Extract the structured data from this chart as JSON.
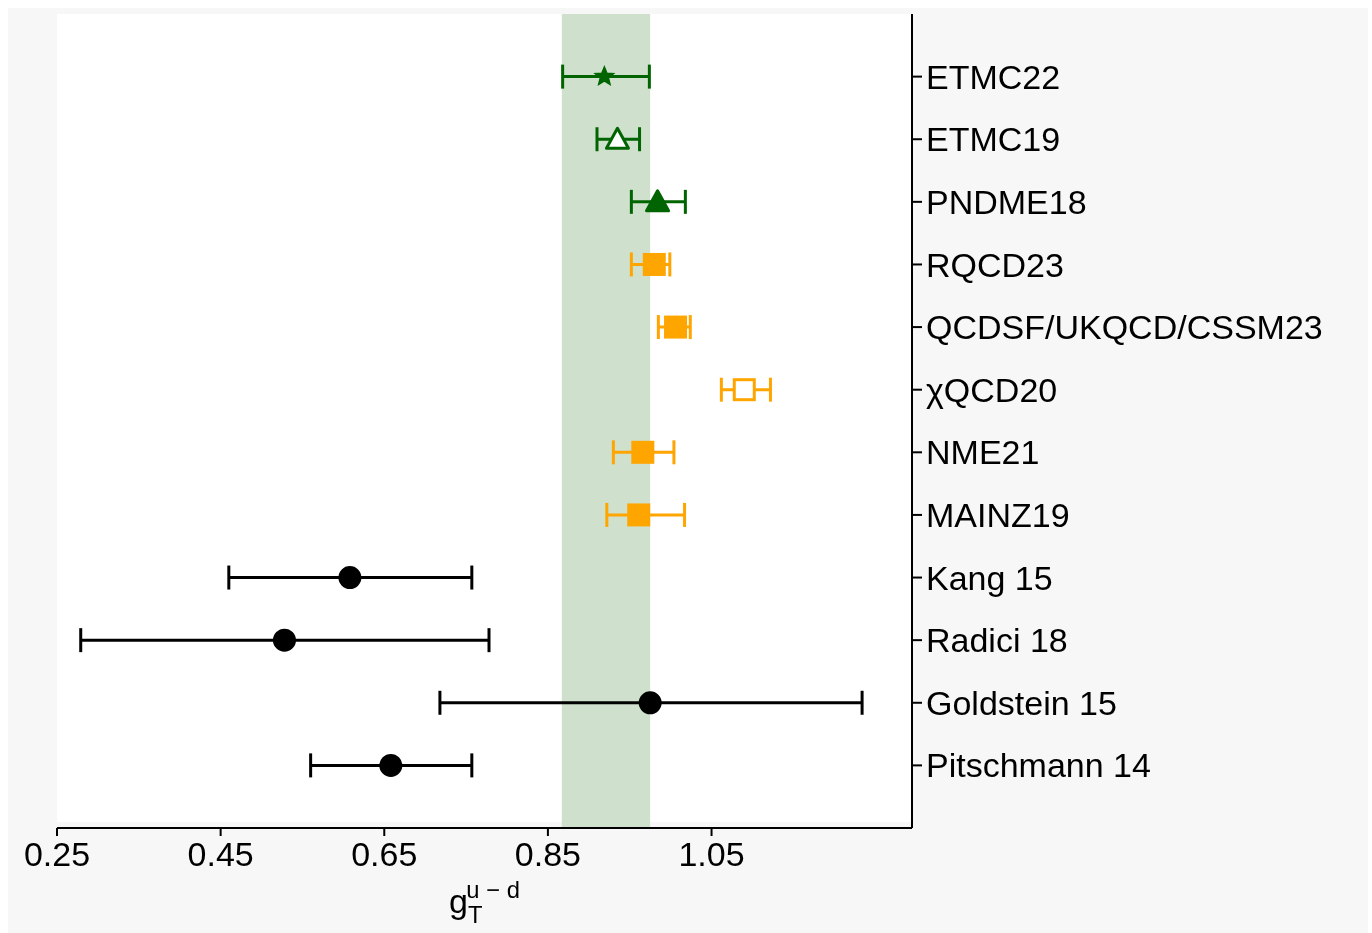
{
  "chart_data": {
    "type": "scatter",
    "orientation": "horizontal",
    "xlabel": "g$_{T}$$^{u − d}$",
    "categories": [
      "ETMC22",
      "ETMC19",
      "PNDME18",
      "RQCD23",
      "QCDSF/UKQCD/CSSM23",
      "χQCD20",
      "NME21",
      "MAINZ19",
      "Kang 15",
      "Radici 18",
      "Goldstein 15",
      "Pitschmann 14"
    ],
    "xlim": [
      0.25,
      1.295
    ],
    "xticks": [
      0.25,
      0.45,
      0.65,
      0.85,
      1.05
    ],
    "grid": false,
    "legend": false,
    "bands": [
      {
        "axis": "x",
        "from": 0.867,
        "to": 0.975,
        "color": "#cfe1cd"
      }
    ],
    "series": [
      {
        "color": "#006400",
        "marker": "star",
        "values": [
          0.919,
          null,
          null,
          null,
          null,
          null,
          null,
          null,
          null,
          null,
          null,
          null
        ],
        "errors": [
          [
            0.868,
            0.974
          ],
          null,
          null,
          null,
          null,
          null,
          null,
          null,
          null,
          null,
          null,
          null
        ]
      },
      {
        "color": "#006400",
        "marker": "triangle-open",
        "values": [
          null,
          0.935,
          null,
          null,
          null,
          null,
          null,
          null,
          null,
          null,
          null,
          null
        ],
        "errors": [
          null,
          [
            0.91,
            0.962
          ],
          null,
          null,
          null,
          null,
          null,
          null,
          null,
          null,
          null,
          null
        ]
      },
      {
        "color": "#006400",
        "marker": "triangle",
        "values": [
          null,
          null,
          0.984,
          null,
          null,
          null,
          null,
          null,
          null,
          null,
          null,
          null
        ],
        "errors": [
          null,
          null,
          [
            0.952,
            1.018
          ],
          null,
          null,
          null,
          null,
          null,
          null,
          null,
          null,
          null
        ]
      },
      {
        "color": "#ffa500",
        "marker": "square",
        "values": [
          null,
          null,
          null,
          0.98,
          1.006,
          null,
          0.966,
          0.961,
          null,
          null,
          null,
          null
        ],
        "errors": [
          null,
          null,
          null,
          [
            0.952,
            0.999
          ],
          [
            0.985,
            1.024
          ],
          null,
          [
            0.93,
            1.004
          ],
          [
            0.922,
            1.017
          ],
          null,
          null,
          null,
          null
        ]
      },
      {
        "color": "#ffa500",
        "marker": "square-open",
        "values": [
          null,
          null,
          null,
          null,
          null,
          1.09,
          null,
          null,
          null,
          null,
          null,
          null
        ],
        "errors": [
          null,
          null,
          null,
          null,
          null,
          [
            1.062,
            1.122
          ],
          null,
          null,
          null,
          null,
          null,
          null
        ]
      },
      {
        "color": "#000000",
        "marker": "circle",
        "values": [
          null,
          null,
          null,
          null,
          null,
          null,
          null,
          null,
          0.608,
          0.528,
          0.975,
          0.658
        ],
        "errors": [
          null,
          null,
          null,
          null,
          null,
          null,
          null,
          null,
          [
            0.46,
            0.757
          ],
          [
            0.279,
            0.778
          ],
          [
            0.718,
            1.234
          ],
          [
            0.56,
            0.757
          ]
        ]
      }
    ]
  }
}
